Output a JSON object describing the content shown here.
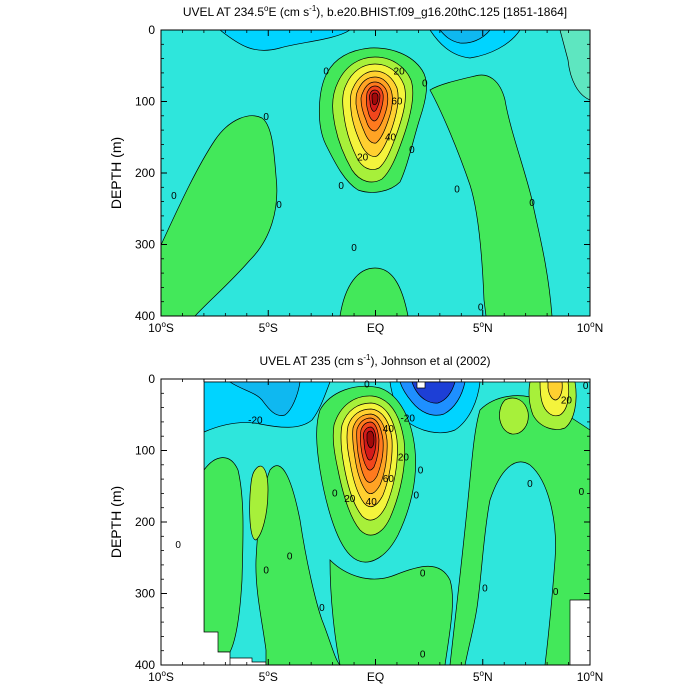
{
  "chart_data": [
    {
      "type": "contour",
      "title": "UVEL AT 234.5°E (cm s⁻¹), b.e20.BHIST.f09_g16.20thC.125 [1851-1864]",
      "title_parts": [
        "UVEL AT 234.5",
        "o",
        "E (cm s",
        "-1",
        "), b.e20.BHIST.f09_g16.20thC.125 [1851-1864]"
      ],
      "ylabel": "DEPTH (m)",
      "xlim": [
        -10,
        10
      ],
      "ylim": [
        400,
        0
      ],
      "xticks": [
        {
          "v": -10,
          "n": "10",
          "s": "o",
          "h": "S"
        },
        {
          "v": -5,
          "n": "5",
          "s": "o",
          "h": "S"
        },
        {
          "v": 0,
          "n": "EQ",
          "s": "",
          "h": ""
        },
        {
          "v": 5,
          "n": "5",
          "s": "o",
          "h": "N"
        },
        {
          "v": 10,
          "n": "10",
          "s": "o",
          "h": "N"
        }
      ],
      "yticks": [
        0,
        100,
        200,
        300,
        400
      ],
      "max_value": 70,
      "contour_labels": [
        {
          "text": "0",
          "x": -2.3,
          "y": 58
        },
        {
          "text": "0",
          "x": 2.3,
          "y": 75
        },
        {
          "text": "0",
          "x": -5.1,
          "y": 122
        },
        {
          "text": "0",
          "x": -9.4,
          "y": 232
        },
        {
          "text": "0",
          "x": -4.5,
          "y": 245
        },
        {
          "text": "0",
          "x": -1.6,
          "y": 218
        },
        {
          "text": "0",
          "x": 1.7,
          "y": 168
        },
        {
          "text": "0",
          "x": 3.8,
          "y": 223
        },
        {
          "text": "0",
          "x": -1.0,
          "y": 305
        },
        {
          "text": "0",
          "x": 4.9,
          "y": 388
        },
        {
          "text": "0",
          "x": 7.3,
          "y": 242
        },
        {
          "text": "20",
          "x": 1.1,
          "y": 58
        },
        {
          "text": "20",
          "x": -0.6,
          "y": 178
        },
        {
          "text": "40",
          "x": 0.7,
          "y": 150
        },
        {
          "text": "60",
          "x": 1.0,
          "y": 100
        }
      ]
    },
    {
      "type": "contour",
      "title": "UVEL AT 235 (cm s⁻¹), Johnson et al (2002)",
      "title_parts": [
        "UVEL AT 235 (cm s",
        "-1",
        "), Johnson et al (2002)"
      ],
      "ylabel": "DEPTH (m)",
      "xlim": [
        -10,
        10
      ],
      "ylim": [
        400,
        0
      ],
      "xticks": [
        {
          "v": -10,
          "n": "10",
          "s": "o",
          "h": "S"
        },
        {
          "v": -5,
          "n": "5",
          "s": "o",
          "h": "S"
        },
        {
          "v": 0,
          "n": "EQ",
          "s": "",
          "h": ""
        },
        {
          "v": 5,
          "n": "5",
          "s": "o",
          "h": "N"
        },
        {
          "v": 10,
          "n": "10",
          "s": "o",
          "h": "N"
        }
      ],
      "yticks": [
        0,
        100,
        200,
        300,
        400
      ],
      "max_value": 90,
      "contour_labels": [
        {
          "text": "-20",
          "x": -5.6,
          "y": 58
        },
        {
          "text": "-20",
          "x": 1.5,
          "y": 55
        },
        {
          "text": "20",
          "x": 8.9,
          "y": 30
        },
        {
          "text": "20",
          "x": 1.3,
          "y": 110
        },
        {
          "text": "20",
          "x": -1.2,
          "y": 168
        },
        {
          "text": "40",
          "x": -0.2,
          "y": 172
        },
        {
          "text": "40",
          "x": 0.6,
          "y": 70
        },
        {
          "text": "60",
          "x": 0.6,
          "y": 140
        },
        {
          "text": "0",
          "x": -0.4,
          "y": 8
        },
        {
          "text": "0",
          "x": 2.1,
          "y": 128
        },
        {
          "text": "0",
          "x": -1.9,
          "y": 160
        },
        {
          "text": "0",
          "x": 1.9,
          "y": 163
        },
        {
          "text": "0",
          "x": -9.2,
          "y": 232
        },
        {
          "text": "0",
          "x": -5.1,
          "y": 268
        },
        {
          "text": "0",
          "x": -4.0,
          "y": 248
        },
        {
          "text": "0",
          "x": -2.5,
          "y": 320
        },
        {
          "text": "0",
          "x": 2.2,
          "y": 272
        },
        {
          "text": "0",
          "x": 2.2,
          "y": 385
        },
        {
          "text": "0",
          "x": 5.1,
          "y": 293
        },
        {
          "text": "0",
          "x": 7.2,
          "y": 147
        },
        {
          "text": "0",
          "x": 8.4,
          "y": 298
        },
        {
          "text": "0",
          "x": 9.6,
          "y": 158
        },
        {
          "text": "0",
          "x": 9.8,
          "y": 10
        }
      ]
    }
  ]
}
